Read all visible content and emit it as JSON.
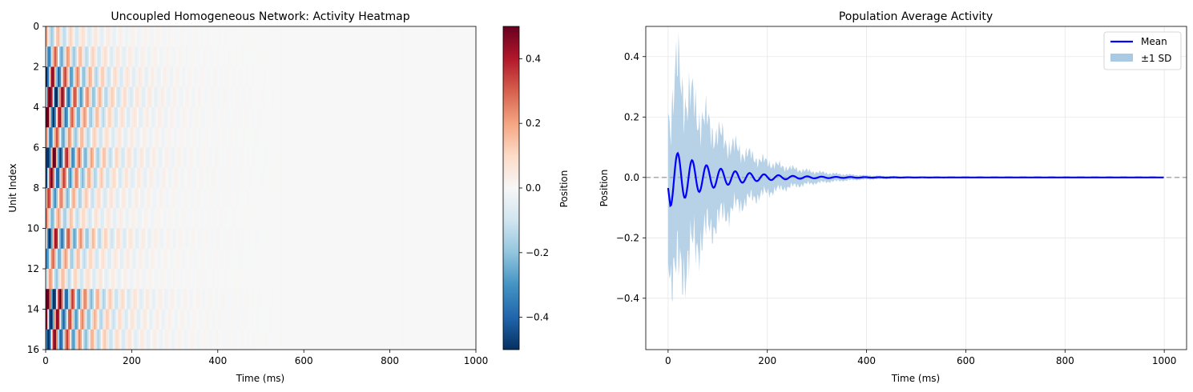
{
  "chart_data": [
    {
      "type": "heatmap",
      "title": "Uncoupled Homogeneous Network: Activity Heatmap",
      "xlabel": "Time (ms)",
      "ylabel": "Unit Index",
      "xlim": [
        0,
        1000
      ],
      "ylim": [
        16,
        0
      ],
      "x_ticks": [
        0,
        200,
        400,
        600,
        800,
        1000
      ],
      "y_ticks": [
        0,
        2,
        4,
        6,
        8,
        10,
        12,
        14,
        16
      ],
      "n_units": 16,
      "colormap": "RdBu_r",
      "colorbar": {
        "label": "Position",
        "vmin": -0.5,
        "vmax": 0.5,
        "ticks": [
          -0.4,
          -0.2,
          0.0,
          0.2,
          0.4
        ],
        "tick_labels": [
          "−0.4",
          "−0.2",
          "0.0",
          "0.2",
          "0.4"
        ]
      },
      "dynamics": {
        "period_ms": 29,
        "decay_time_ms": 90,
        "unit_amplitudes": [
          0.3,
          0.55,
          0.8,
          1.0,
          0.85,
          0.6,
          0.95,
          0.8,
          0.55,
          0.4,
          0.8,
          0.5,
          0.35,
          1.0,
          0.9,
          0.85
        ]
      }
    },
    {
      "type": "line",
      "title": "Population Average Activity",
      "xlabel": "Time (ms)",
      "ylabel": "Position",
      "xlim": [
        -45,
        1045
      ],
      "ylim": [
        -0.57,
        0.5
      ],
      "x_ticks": [
        0,
        200,
        400,
        600,
        800,
        1000
      ],
      "y_ticks": [
        -0.4,
        -0.2,
        0.0,
        0.2,
        0.4
      ],
      "y_tick_labels": [
        "−0.4",
        "−0.2",
        "0.0",
        "0.2",
        "0.4"
      ],
      "grid": true,
      "legend": "upper right",
      "series": [
        {
          "name": "Mean",
          "color": "#0000ff",
          "amplitude": 0.095,
          "period_ms": 29,
          "decay_time_ms": 85,
          "start_value": -0.035
        },
        {
          "name": "±1 SD",
          "color": "#aac9e3",
          "sd_amplitude": 0.4,
          "sd_decay_time_ms": 95
        }
      ],
      "reference_line": {
        "y": 0.0,
        "color": "#aaaaaa",
        "style": "dashed"
      }
    }
  ]
}
